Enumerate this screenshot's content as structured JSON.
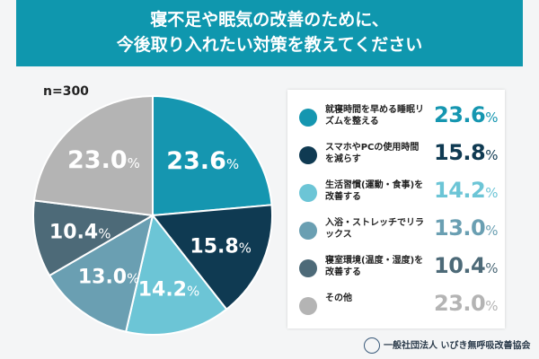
{
  "header": {
    "line1": "寝不足や眠気の改善のために、",
    "line2": "今後取り入れたい対策を教えてください"
  },
  "sample": "n=300",
  "footer": "一般社団法人 いびき無呼吸改善協会",
  "chart_data": {
    "type": "pie",
    "unit": "%",
    "slices": [
      {
        "label": "就寝時間を早める睡眠リズムを整える",
        "value": 23.6,
        "display": "23.6",
        "color": "#1596b0"
      },
      {
        "label": "スマホやPCの使用時間を減らす",
        "value": 15.8,
        "display": "15.8",
        "color": "#0f3a52"
      },
      {
        "label": "生活習慣(運動・食事)を改善する",
        "value": 14.2,
        "display": "14.2",
        "color": "#6cc5d6"
      },
      {
        "label": "入浴・ストレッチでリラックス",
        "value": 13.0,
        "display": "13.0",
        "color": "#6a9fb2"
      },
      {
        "label": "寝室環境(温度・湿度)を改善する",
        "value": 10.4,
        "display": "10.4",
        "color": "#4d6a78"
      },
      {
        "label": "その他",
        "value": 23.0,
        "display": "23.0",
        "color": "#b4b4b4"
      }
    ],
    "legend": "right"
  }
}
